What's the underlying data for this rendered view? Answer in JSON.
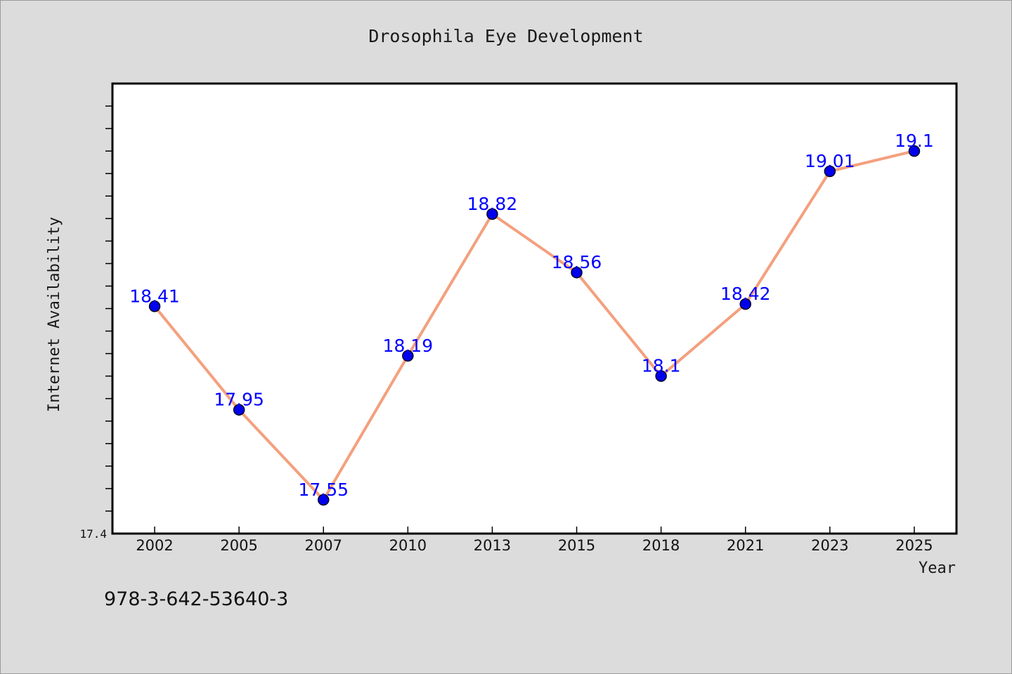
{
  "chart_data": {
    "type": "line",
    "title": "Drosophila Eye Development",
    "xlabel": "Year",
    "ylabel": "Internet Availability",
    "x": [
      "2002",
      "2005",
      "2007",
      "2010",
      "2013",
      "2015",
      "2018",
      "2021",
      "2023",
      "2025"
    ],
    "series": [
      {
        "values": [
          18.41,
          17.95,
          17.55,
          18.19,
          18.82,
          18.56,
          18.1,
          18.42,
          19.01,
          19.1
        ]
      }
    ],
    "data_labels": [
      "18.41",
      "17.95",
      "17.55",
      "18.19",
      "18.82",
      "18.56",
      "18.1",
      "18.42",
      "19.01",
      "19.1"
    ],
    "ylim": [
      17.4,
      19.4
    ],
    "y_tick_label": "17.4",
    "y_minor_tick_step": 0.1,
    "grid": false,
    "line_color": "#f4a07e",
    "marker_color": "#0000ee",
    "label_color": "#0000ff",
    "plot_background": "#ffffff",
    "page_background": "#dcdcdc"
  },
  "footer": {
    "isbn": "978-3-642-53640-3"
  }
}
